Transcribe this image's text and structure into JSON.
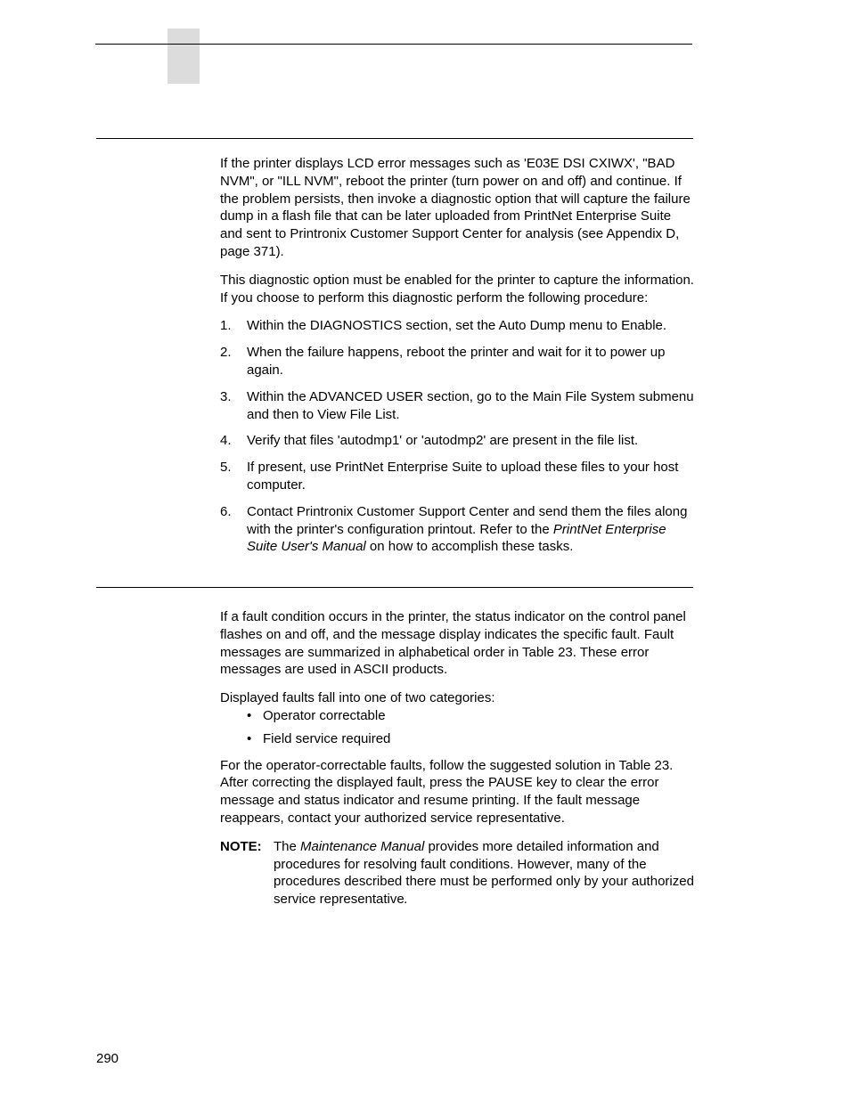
{
  "page_number": "290",
  "section1": {
    "para1": "If the printer displays LCD error messages such as 'E03E DSI CXIWX', \"BAD NVM\", or \"ILL NVM\", reboot the printer (turn power on and off) and continue. If the problem persists, then invoke a diagnostic option that will capture the failure dump in a flash file that can be later uploaded from PrintNet Enterprise Suite and sent to Printronix Customer Support Center for analysis (see Appendix D, page 371).",
    "para2": "This diagnostic option must be enabled for the printer to capture the information. If you choose to perform this diagnostic perform the following procedure:",
    "list": [
      "Within the DIAGNOSTICS section, set the Auto Dump menu to Enable.",
      "When the failure happens, reboot the printer and wait for it to power up again.",
      "Within the ADVANCED USER section, go to the Main File System submenu and then to View File List.",
      "Verify that files 'autodmp1' or 'autodmp2' are present in the file list.",
      "If present, use PrintNet Enterprise Suite to upload these files to your host computer."
    ],
    "item6_a": "Contact Printronix Customer Support Center and send them the files along with the printer's configuration printout. Refer to the ",
    "item6_b": "PrintNet Enterprise Suite User's Manual",
    "item6_c": " on how to accomplish these tasks."
  },
  "section2": {
    "para1": "If a fault condition occurs in the printer, the status indicator on the control panel flashes on and off, and the message display indicates the specific fault. Fault messages are summarized in alphabetical order in Table 23. These error messages are used in ASCII products.",
    "para2": "Displayed faults fall into one of two categories:",
    "bullets": [
      "Operator correctable",
      "Field service required"
    ],
    "para3_a": "For the operator-correctable faults, follow the suggested solution in Table 23. After correcting the displayed fault, press the ",
    "para3_b": "PAUSE",
    "para3_c": " key to clear the error message and status indicator and resume printing. If the fault message reappears, contact your authorized service representative.",
    "note_label": "NOTE:",
    "note_a": "The ",
    "note_b": "Maintenance Manual",
    "note_c": " provides more detailed information and procedures for resolving fault conditions. However, many of the procedures described there must be performed only by your authorized service representative",
    "note_d": "."
  }
}
